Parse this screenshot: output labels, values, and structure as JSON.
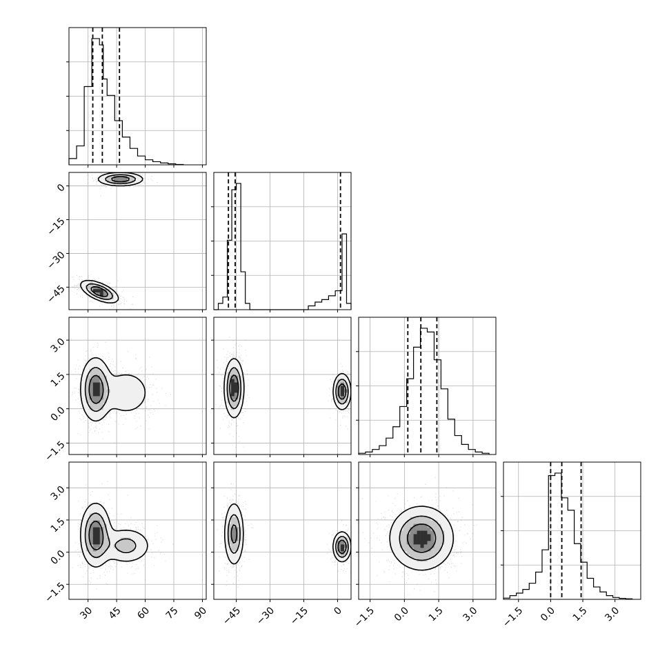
{
  "chart_data": {
    "type": "corner",
    "grid": true,
    "params": [
      {
        "ticks": [
          30,
          45,
          60,
          75,
          90
        ],
        "range": [
          20,
          92
        ]
      },
      {
        "ticks": [
          -45,
          -30,
          -15,
          0
        ],
        "range": [
          -55,
          6
        ]
      },
      {
        "ticks": [
          -1.5,
          0.0,
          1.5,
          3.0
        ],
        "range": [
          -2.0,
          4.0
        ]
      },
      {
        "ticks": [
          -1.5,
          0.0,
          1.5,
          3.0
        ],
        "range": [
          -2.2,
          4.2
        ]
      }
    ],
    "tick_labels": [
      [
        "30",
        "45",
        "60",
        "75",
        "90"
      ],
      [
        "−45",
        "−30",
        "−15",
        "0"
      ],
      [
        "−1.5",
        "0.0",
        "1.5",
        "3.0"
      ],
      [
        "−1.5",
        "0.0",
        "1.5",
        "3.0"
      ]
    ],
    "histograms": [
      {
        "bin_edges": [
          20,
          24,
          28,
          32,
          34,
          36,
          38,
          40,
          44,
          48,
          52,
          56,
          60,
          64,
          68,
          72,
          76,
          80
        ],
        "counts": [
          0.05,
          0.15,
          0.62,
          1.0,
          1.0,
          0.95,
          0.68,
          0.55,
          0.35,
          0.22,
          0.13,
          0.07,
          0.04,
          0.025,
          0.015,
          0.008,
          0.003
        ],
        "quantiles": [
          32.5,
          37.5,
          46.5
        ]
      },
      {
        "bin_edges": [
          -55,
          -53,
          -51,
          -49,
          -47,
          -45,
          -43,
          -41,
          -39,
          -37,
          -20,
          -13,
          -10,
          -7,
          -4,
          -1,
          2,
          4,
          6
        ],
        "counts": [
          0.0,
          0.05,
          0.1,
          0.55,
          0.95,
          1.0,
          0.3,
          0.05,
          0.0,
          0.0,
          0.0,
          0.03,
          0.06,
          0.08,
          0.11,
          0.15,
          0.6,
          0.05
        ],
        "quantiles": [
          -48.5,
          -45.5,
          1.3
        ]
      },
      {
        "bin_edges": [
          -2.0,
          -1.7,
          -1.4,
          -1.1,
          -0.8,
          -0.5,
          -0.2,
          0.1,
          0.4,
          0.7,
          1.0,
          1.3,
          1.6,
          1.9,
          2.2,
          2.5,
          2.8,
          3.1,
          3.4,
          3.7
        ],
        "counts": [
          0.01,
          0.02,
          0.04,
          0.07,
          0.13,
          0.22,
          0.38,
          0.6,
          0.85,
          1.0,
          0.97,
          0.75,
          0.52,
          0.28,
          0.15,
          0.08,
          0.04,
          0.02,
          0.01
        ],
        "quantiles": [
          0.15,
          0.72,
          1.42
        ]
      },
      {
        "bin_edges": [
          -2.2,
          -1.9,
          -1.6,
          -1.3,
          -1.0,
          -0.7,
          -0.4,
          -0.1,
          0.2,
          0.5,
          0.8,
          1.1,
          1.4,
          1.7,
          2.0,
          2.3,
          2.6,
          2.9,
          3.2,
          3.5,
          3.8
        ],
        "counts": [
          0.01,
          0.03,
          0.05,
          0.08,
          0.13,
          0.22,
          0.4,
          1.0,
          1.02,
          0.82,
          0.72,
          0.45,
          0.3,
          0.17,
          0.1,
          0.06,
          0.03,
          0.015,
          0.008,
          0.004
        ],
        "quantiles": [
          0.0,
          0.52,
          1.42
        ]
      }
    ],
    "pairs": [
      {
        "row": 1,
        "col": 0,
        "modes": [
          {
            "cx": 47,
            "cy": 3,
            "sx": 6,
            "sy": 1.5,
            "rho": 0,
            "w": 0.4
          },
          {
            "cx": 36,
            "cy": -47,
            "sx": 5,
            "sy": 2.5,
            "rho": -0.6,
            "w": 0.6
          }
        ]
      },
      {
        "row": 2,
        "col": 0,
        "modes": [
          {
            "cx": 34,
            "cy": 0.85,
            "sx": 4,
            "sy": 0.7,
            "rho": 0,
            "w": 0.65
          },
          {
            "cx": 50,
            "cy": 0.7,
            "sx": 7,
            "sy": 0.55,
            "rho": 0,
            "w": 0.35
          }
        ]
      },
      {
        "row": 3,
        "col": 0,
        "modes": [
          {
            "cx": 34,
            "cy": 0.8,
            "sx": 4,
            "sy": 0.75,
            "rho": 0,
            "w": 0.65
          },
          {
            "cx": 50,
            "cy": 0.3,
            "sx": 7,
            "sy": 0.45,
            "rho": 0,
            "w": 0.35
          }
        ]
      },
      {
        "row": 2,
        "col": 1,
        "modes": [
          {
            "cx": -46,
            "cy": 0.9,
            "sx": 2.2,
            "sy": 0.65,
            "rho": 0,
            "w": 0.65
          },
          {
            "cx": 2,
            "cy": 0.75,
            "sx": 2,
            "sy": 0.4,
            "rho": 0,
            "w": 0.35
          }
        ]
      },
      {
        "row": 3,
        "col": 1,
        "modes": [
          {
            "cx": -46,
            "cy": 0.85,
            "sx": 2.2,
            "sy": 0.75,
            "rho": 0,
            "w": 0.65
          },
          {
            "cx": 2,
            "cy": 0.25,
            "sx": 2,
            "sy": 0.35,
            "rho": 0,
            "w": 0.35
          }
        ]
      },
      {
        "row": 3,
        "col": 2,
        "modes": [
          {
            "cx": 0.75,
            "cy": 0.65,
            "sx": 0.7,
            "sy": 0.75,
            "rho": 0,
            "w": 1.0
          }
        ]
      }
    ]
  }
}
